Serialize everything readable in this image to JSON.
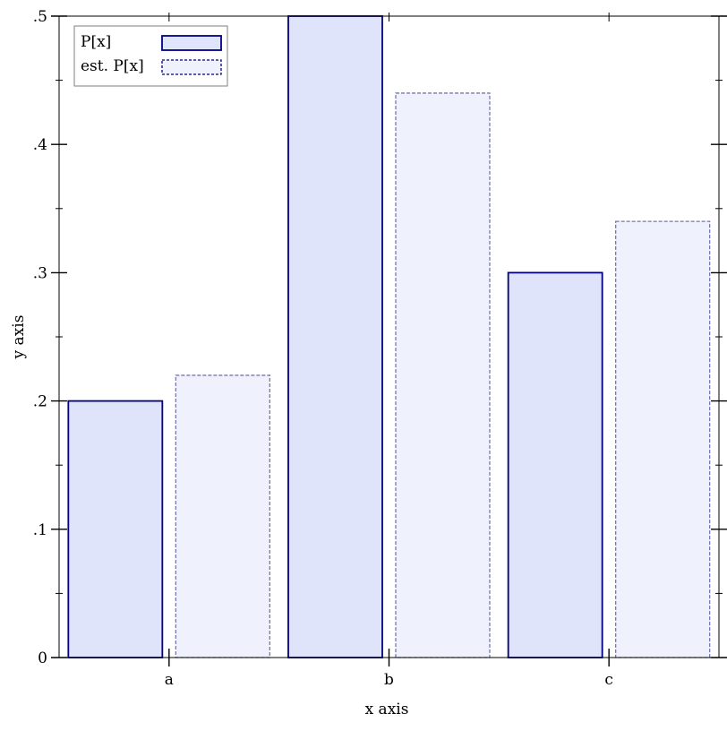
{
  "chart_data": {
    "type": "bar",
    "categories": [
      "a",
      "b",
      "c"
    ],
    "series": [
      {
        "name": "P[x]",
        "values": [
          0.2,
          0.5,
          0.3
        ],
        "fill": "#e0e4fb",
        "stroke": "#000080",
        "dashed": false
      },
      {
        "name": "est. P[x]",
        "values": [
          0.22,
          0.44,
          0.34
        ],
        "fill": "#eff1fc",
        "stroke": "#7777b0",
        "dashed": true
      }
    ],
    "xlabel": "x axis",
    "ylabel": "y axis",
    "ylim": [
      0,
      0.5
    ],
    "yticks": [
      {
        "value": 0,
        "label": "0"
      },
      {
        "value": 0.1,
        "label": ".1"
      },
      {
        "value": 0.2,
        "label": ".2"
      },
      {
        "value": 0.3,
        "label": ".3"
      },
      {
        "value": 0.4,
        "label": ".4"
      },
      {
        "value": 0.5,
        "label": ".5"
      }
    ],
    "legend_position": "top-left",
    "grid": false
  }
}
